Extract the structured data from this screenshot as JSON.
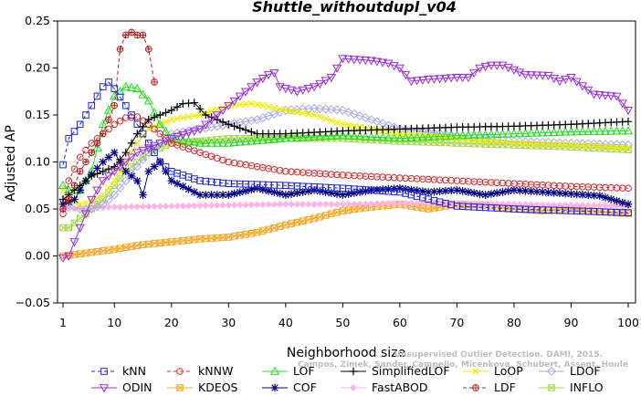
{
  "chart_data": {
    "type": "line",
    "title": "Shuttle_withoutdupl_v04",
    "xlabel": "Neighborhood size",
    "ylabel": "Adjusted AP",
    "xlim": [
      1,
      100
    ],
    "ylim": [
      -0.05,
      0.25
    ],
    "x_ticks": [
      1,
      10,
      20,
      30,
      40,
      50,
      60,
      70,
      80,
      90,
      100
    ],
    "y_ticks": [
      "−0.05",
      "0.00",
      "0.05",
      "0.10",
      "0.15",
      "0.20",
      "0.25"
    ],
    "y_tick_values": [
      -0.05,
      0.0,
      0.05,
      0.1,
      0.15,
      0.2,
      0.25
    ],
    "legend_position": "bottom",
    "watermark": [
      "Campos, Zimek, Sander, Campello, Micenkova, Schubert, Assent, Houle",
      "Unsupervised Outlier Detection. DAMI, 2015."
    ],
    "series": [
      {
        "name": "kNN",
        "color": "#1f24d6",
        "marker": "square",
        "dash": "4,3",
        "x": [
          1,
          2,
          4,
          6,
          8,
          9,
          10,
          12,
          14,
          16,
          18,
          20,
          25,
          30,
          40,
          50,
          60,
          70,
          80,
          90,
          100
        ],
        "y": [
          0.097,
          0.125,
          0.14,
          0.16,
          0.18,
          0.185,
          0.178,
          0.16,
          0.14,
          0.12,
          0.1,
          0.09,
          0.08,
          0.077,
          0.075,
          0.072,
          0.068,
          0.053,
          0.05,
          0.048,
          0.046
        ]
      },
      {
        "name": "kNNW",
        "color": "#d62728",
        "marker": "circle",
        "dash": "4,3",
        "x": [
          1,
          2,
          4,
          6,
          8,
          10,
          12,
          14,
          16,
          18,
          20,
          25,
          30,
          40,
          50,
          60,
          70,
          80,
          90,
          100
        ],
        "y": [
          0.045,
          0.08,
          0.105,
          0.12,
          0.13,
          0.14,
          0.147,
          0.148,
          0.14,
          0.13,
          0.12,
          0.11,
          0.1,
          0.09,
          0.086,
          0.083,
          0.08,
          0.077,
          0.074,
          0.072
        ]
      },
      {
        "name": "LOF",
        "color": "#22dd22",
        "marker": "triangle",
        "dash": "",
        "x": [
          1,
          2,
          4,
          6,
          8,
          10,
          12,
          14,
          16,
          18,
          20,
          25,
          30,
          40,
          50,
          60,
          70,
          80,
          90,
          100
        ],
        "y": [
          0.075,
          0.07,
          0.07,
          0.09,
          0.14,
          0.17,
          0.18,
          0.178,
          0.165,
          0.14,
          0.125,
          0.12,
          0.12,
          0.125,
          0.128,
          0.125,
          0.128,
          0.13,
          0.132,
          0.133
        ]
      },
      {
        "name": "SimplifiedLOF",
        "color": "#000000",
        "marker": "plus",
        "dash": "",
        "x": [
          1,
          2,
          4,
          6,
          8,
          10,
          12,
          14,
          16,
          18,
          20,
          22,
          24,
          26,
          30,
          35,
          40,
          50,
          60,
          70,
          80,
          90,
          100
        ],
        "y": [
          0.06,
          0.065,
          0.075,
          0.085,
          0.09,
          0.095,
          0.11,
          0.13,
          0.145,
          0.15,
          0.155,
          0.162,
          0.163,
          0.15,
          0.14,
          0.13,
          0.13,
          0.133,
          0.135,
          0.137,
          0.138,
          0.14,
          0.143
        ]
      },
      {
        "name": "LoOP",
        "color": "#eeee00",
        "marker": "cross",
        "dash": "",
        "x": [
          1,
          2,
          4,
          6,
          8,
          10,
          12,
          14,
          16,
          18,
          20,
          25,
          30,
          34,
          36,
          40,
          45,
          50,
          55,
          60,
          70,
          80,
          90,
          100
        ],
        "y": [
          0.07,
          0.06,
          0.055,
          0.058,
          0.065,
          0.08,
          0.1,
          0.12,
          0.135,
          0.14,
          0.145,
          0.15,
          0.16,
          0.162,
          0.16,
          0.155,
          0.15,
          0.14,
          0.135,
          0.13,
          0.125,
          0.12,
          0.118,
          0.115
        ]
      },
      {
        "name": "LDOF",
        "color": "#a9a9e8",
        "marker": "diamond",
        "dash": "",
        "x": [
          1,
          2,
          4,
          6,
          8,
          10,
          12,
          14,
          16,
          18,
          20,
          25,
          30,
          35,
          40,
          45,
          50,
          55,
          60,
          70,
          80,
          90,
          100
        ],
        "y": [
          0.06,
          0.055,
          0.05,
          0.05,
          0.055,
          0.065,
          0.08,
          0.095,
          0.11,
          0.12,
          0.13,
          0.135,
          0.14,
          0.145,
          0.155,
          0.157,
          0.155,
          0.145,
          0.135,
          0.128,
          0.122,
          0.12,
          0.118
        ]
      },
      {
        "name": "ODIN",
        "color": "#9b30d9",
        "marker": "tridown",
        "dash": "",
        "x": [
          1,
          2,
          4,
          6,
          8,
          10,
          12,
          14,
          16,
          18,
          20,
          25,
          30,
          35,
          37,
          38,
          39,
          42,
          45,
          48,
          50,
          55,
          58,
          60,
          62,
          65,
          70,
          72,
          74,
          76,
          78,
          82,
          86,
          88,
          90,
          94,
          98,
          100
        ],
        "y": [
          -0.002,
          0.0,
          0.03,
          0.06,
          0.08,
          0.09,
          0.1,
          0.11,
          0.115,
          0.12,
          0.125,
          0.135,
          0.16,
          0.185,
          0.193,
          0.195,
          0.18,
          0.175,
          0.18,
          0.19,
          0.21,
          0.208,
          0.205,
          0.2,
          0.186,
          0.188,
          0.19,
          0.19,
          0.2,
          0.203,
          0.203,
          0.193,
          0.192,
          0.186,
          0.19,
          0.172,
          0.17,
          0.155
        ]
      },
      {
        "name": "KDEOS",
        "color": "#f5a623",
        "marker": "xsquare",
        "dash": "",
        "x": [
          1,
          5,
          10,
          15,
          20,
          25,
          30,
          35,
          40,
          45,
          50,
          55,
          60,
          65,
          70,
          75,
          80,
          85,
          90,
          95,
          100
        ],
        "y": [
          0.0,
          0.003,
          0.007,
          0.012,
          0.015,
          0.018,
          0.02,
          0.025,
          0.033,
          0.04,
          0.048,
          0.052,
          0.055,
          0.05,
          0.055,
          0.054,
          0.05,
          0.048,
          0.05,
          0.047,
          0.045
        ]
      },
      {
        "name": "COF",
        "color": "#000080",
        "marker": "star",
        "dash": "",
        "x": [
          1,
          3,
          5,
          8,
          10,
          12,
          14,
          15,
          16,
          18,
          20,
          25,
          30,
          35,
          40,
          45,
          50,
          55,
          60,
          65,
          70,
          75,
          80,
          85,
          90,
          95,
          100
        ],
        "y": [
          0.055,
          0.06,
          0.08,
          0.1,
          0.11,
          0.09,
          0.08,
          0.065,
          0.09,
          0.1,
          0.08,
          0.065,
          0.065,
          0.072,
          0.065,
          0.07,
          0.065,
          0.07,
          0.072,
          0.068,
          0.07,
          0.065,
          0.07,
          0.068,
          0.066,
          0.064,
          0.055
        ]
      },
      {
        "name": "FastABOD",
        "color": "#ffb3e6",
        "marker": "diamondfill",
        "dash": "",
        "x": [
          1,
          10,
          20,
          30,
          40,
          50,
          60,
          70,
          80,
          90,
          100
        ],
        "y": [
          0.05,
          0.052,
          0.053,
          0.054,
          0.055,
          0.055,
          0.056,
          0.056,
          0.055,
          0.054,
          0.053
        ]
      },
      {
        "name": "LDF",
        "color": "#b22222",
        "marker": "circleplus",
        "dash": "4,3",
        "x": [
          1,
          2,
          4,
          6,
          8,
          10,
          11,
          12,
          13,
          14,
          15,
          16,
          17
        ],
        "y": [
          0.05,
          0.06,
          0.09,
          0.11,
          0.13,
          0.16,
          0.22,
          0.235,
          0.238,
          0.235,
          0.235,
          0.22,
          0.185
        ]
      },
      {
        "name": "INFLO",
        "color": "#a8d64f",
        "marker": "xsquareg",
        "dash": "",
        "x": [
          1,
          2,
          4,
          6,
          8,
          10,
          12,
          14,
          16,
          18,
          20,
          25,
          30,
          40,
          50,
          60,
          70,
          80,
          90,
          100
        ],
        "y": [
          0.03,
          0.03,
          0.04,
          0.05,
          0.06,
          0.075,
          0.09,
          0.1,
          0.11,
          0.115,
          0.12,
          0.122,
          0.125,
          0.125,
          0.125,
          0.122,
          0.12,
          0.118,
          0.116,
          0.113
        ]
      }
    ]
  }
}
